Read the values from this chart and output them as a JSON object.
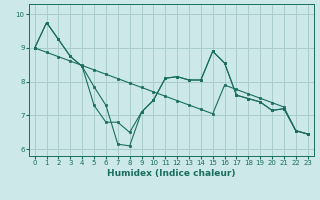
{
  "xlabel": "Humidex (Indice chaleur)",
  "background_color": "#cce8e8",
  "grid_color": "#aacccc",
  "line_color": "#1a6e60",
  "xlim": [
    -0.5,
    23.5
  ],
  "ylim": [
    5.8,
    10.3
  ],
  "yticks": [
    6,
    7,
    8,
    9,
    10
  ],
  "xticks": [
    0,
    1,
    2,
    3,
    4,
    5,
    6,
    7,
    8,
    9,
    10,
    11,
    12,
    13,
    14,
    15,
    16,
    17,
    18,
    19,
    20,
    21,
    22,
    23
  ],
  "series1_x": [
    0,
    1,
    2,
    3,
    4,
    5,
    6,
    7,
    8,
    9,
    10,
    11,
    12,
    13,
    14,
    15,
    16,
    17,
    18,
    19,
    20,
    21,
    22,
    23
  ],
  "series1_y": [
    9.0,
    9.75,
    9.25,
    8.75,
    8.45,
    7.3,
    6.8,
    6.8,
    6.5,
    7.1,
    7.45,
    8.1,
    8.15,
    8.05,
    8.05,
    8.9,
    8.55,
    7.6,
    7.5,
    7.4,
    7.15,
    7.2,
    6.55,
    6.45
  ],
  "series2_x": [
    0,
    1,
    2,
    3,
    4,
    5,
    6,
    7,
    8,
    9,
    10,
    11,
    12,
    13,
    14,
    15,
    16,
    17,
    18,
    19,
    20,
    21,
    22,
    23
  ],
  "series2_y": [
    9.0,
    9.75,
    9.25,
    8.75,
    8.45,
    7.85,
    7.3,
    6.15,
    6.1,
    7.1,
    7.45,
    8.1,
    8.15,
    8.05,
    8.05,
    8.9,
    8.55,
    7.6,
    7.5,
    7.4,
    7.15,
    7.2,
    6.55,
    6.45
  ],
  "series3_x": [
    0,
    1,
    2,
    3,
    4,
    5,
    6,
    7,
    8,
    9,
    10,
    11,
    12,
    13,
    14,
    15,
    16,
    17,
    18,
    19,
    20,
    21,
    22,
    23
  ],
  "series3_y": [
    9.0,
    8.87,
    8.74,
    8.61,
    8.48,
    8.35,
    8.22,
    8.09,
    7.96,
    7.83,
    7.7,
    7.57,
    7.44,
    7.31,
    7.18,
    7.05,
    7.9,
    7.77,
    7.64,
    7.51,
    7.38,
    7.25,
    6.55,
    6.45
  ]
}
